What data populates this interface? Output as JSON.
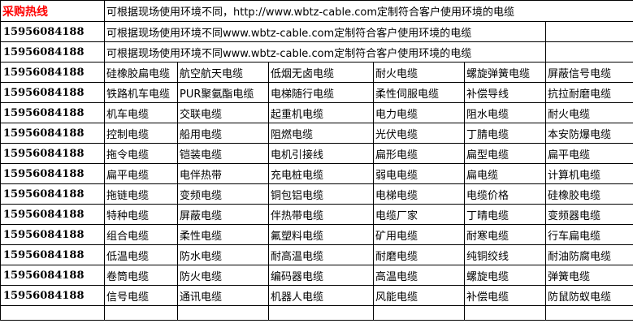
{
  "header": {
    "hotline_label": "采购热线",
    "notice": "可根据现场使用环境不同，http://www.wbtz-cable.com定制符合客户使用环境的电缆"
  },
  "notice_rows": [
    {
      "phone": "15956084188",
      "text": "可根据现场使用环境不同www.wbtz-cable.com定制符合客户使用环境的电缆"
    },
    {
      "phone": "15956084188",
      "text": "可根据现场使用环境不同www.wbtz-cable.com定制符合客户使用环境的电缆"
    }
  ],
  "rows": [
    {
      "phone": "15956084188",
      "cells": [
        "硅橡胶扁电缆",
        "航空航天电缆",
        "低烟无卤电缆",
        "耐火电缆",
        "螺旋弹簧电缆",
        "屏蔽信号电缆"
      ]
    },
    {
      "phone": "15956084188",
      "cells": [
        "铁路机车电缆",
        "PUR聚氨酯电缆",
        "电梯随行电缆",
        "柔性伺服电缆",
        "补偿导线",
        "抗拉耐磨电缆"
      ]
    },
    {
      "phone": "15956084188",
      "cells": [
        "机车电缆",
        "交联电缆",
        "起重机电缆",
        "电力电缆",
        "阻水电缆",
        "耐火电缆"
      ]
    },
    {
      "phone": "15956084188",
      "cells": [
        "控制电缆",
        "船用电缆",
        "阻燃电缆",
        "光伏电缆",
        "丁腈电缆",
        "本安防爆电缆"
      ]
    },
    {
      "phone": "15956084188",
      "cells": [
        "拖令电缆",
        "铠装电缆",
        "电机引接线",
        "扁形电缆",
        "扁型电缆",
        "扁平电缆"
      ]
    },
    {
      "phone": "15956084188",
      "cells": [
        "扁平电缆",
        "电伴热带",
        "充电桩电缆",
        "弱电电缆",
        "扁电缆",
        "计算机电缆"
      ]
    },
    {
      "phone": "15956084188",
      "cells": [
        "拖链电缆",
        "变频电缆",
        "铜包铝电缆",
        "电梯电缆",
        "电缆价格",
        "硅橡胶电缆"
      ]
    },
    {
      "phone": "15956084188",
      "cells": [
        "特种电缆",
        "屏蔽电缆",
        "伴热带电缆",
        "电缆厂家",
        "丁晴电缆",
        "变频器电缆"
      ]
    },
    {
      "phone": "15956084188",
      "cells": [
        "组合电缆",
        "柔性电缆",
        "氟塑料电缆",
        "矿用电缆",
        "耐寒电缆",
        "行车扁电缆"
      ]
    },
    {
      "phone": "15956084188",
      "cells": [
        "低温电缆",
        "防水电缆",
        "耐高温电缆",
        "耐磨电缆",
        "纯铜绞线",
        "耐油防腐电缆"
      ]
    },
    {
      "phone": "15956084188",
      "cells": [
        "卷筒电缆",
        "防火电缆",
        "编码器电缆",
        "高温电缆",
        "螺旋电缆",
        "弹簧电缆"
      ]
    },
    {
      "phone": "15956084188",
      "cells": [
        "信号电缆",
        "通讯电缆",
        "机器人电缆",
        "风能电缆",
        "补偿电缆",
        "防鼠防蚁电缆"
      ]
    }
  ]
}
